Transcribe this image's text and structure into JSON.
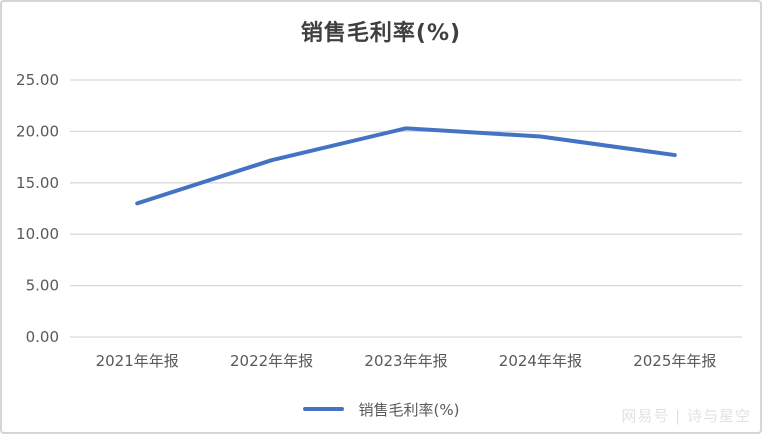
{
  "card": {
    "title": "销售毛利率(%)"
  },
  "legend": {
    "label": "销售毛利率(%)"
  },
  "watermark": "网易号 | 诗与星空",
  "colors": {
    "line": "#4472C4",
    "grid": "#D9D9D9",
    "axis_text": "#595959",
    "title_text": "#3F3F3F",
    "border": "#D6D4D4",
    "watermark_text": "#E2E2E2"
  },
  "chart_data": {
    "type": "line",
    "title": "销售毛利率(%)",
    "categories": [
      "2021年年报",
      "2022年年报",
      "2023年年报",
      "2024年年报",
      "2025年年报"
    ],
    "series": [
      {
        "name": "销售毛利率(%)",
        "values": [
          13.0,
          17.2,
          20.3,
          19.5,
          17.7
        ]
      }
    ],
    "xlabel": "",
    "ylabel": "",
    "ylim": [
      0,
      25
    ],
    "ytick_step": 5,
    "ytick_labels": [
      "0.00",
      "5.00",
      "10.00",
      "15.00",
      "20.00",
      "25.00"
    ],
    "grid": "horizontal",
    "legend_position": "bottom"
  }
}
